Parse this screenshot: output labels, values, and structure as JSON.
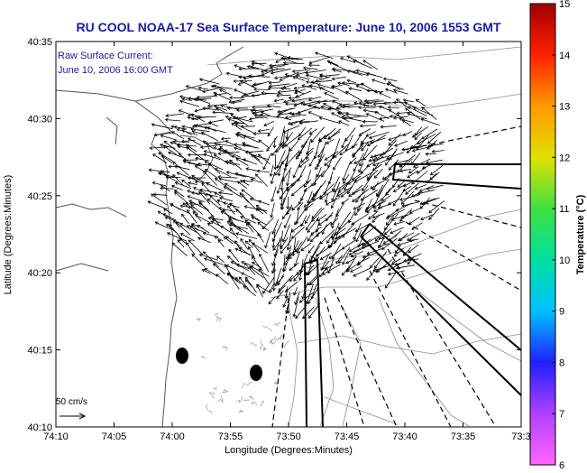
{
  "title": "RU COOL  NOAA-17  Sea Surface Temperature:  June 10, 2006 1553 GMT",
  "overlay": {
    "line1": "Raw Surface Current:",
    "line2": "June 10, 2006 16:00 GMT"
  },
  "axes": {
    "xlabel": "Longitude (Degrees:Minutes)",
    "ylabel": "Latitude (Degrees:Minutes)",
    "x_ticks": [
      "74:10",
      "74:05",
      "74:00",
      "73:55",
      "73:50",
      "73:45",
      "73:40",
      "73:35",
      "73:3"
    ],
    "y_ticks": [
      "40:35",
      "40:30",
      "40:25",
      "40:20",
      "40:15",
      "40:10"
    ]
  },
  "scale_label": "50 cm/s",
  "colorbar": {
    "label": "Temperature (°C)",
    "ticks": [
      "15",
      "14",
      "13",
      "12",
      "11",
      "10",
      "9",
      "8",
      "7",
      "6"
    ],
    "min": 6,
    "max": 15,
    "colors": [
      "#ff66ff",
      "#b040ff",
      "#2020ff",
      "#00c0ff",
      "#00e0a0",
      "#40e040",
      "#e0e000",
      "#ff9900",
      "#ff2000",
      "#a00000"
    ]
  },
  "markers": [
    "black-dot",
    "black-dot"
  ]
}
